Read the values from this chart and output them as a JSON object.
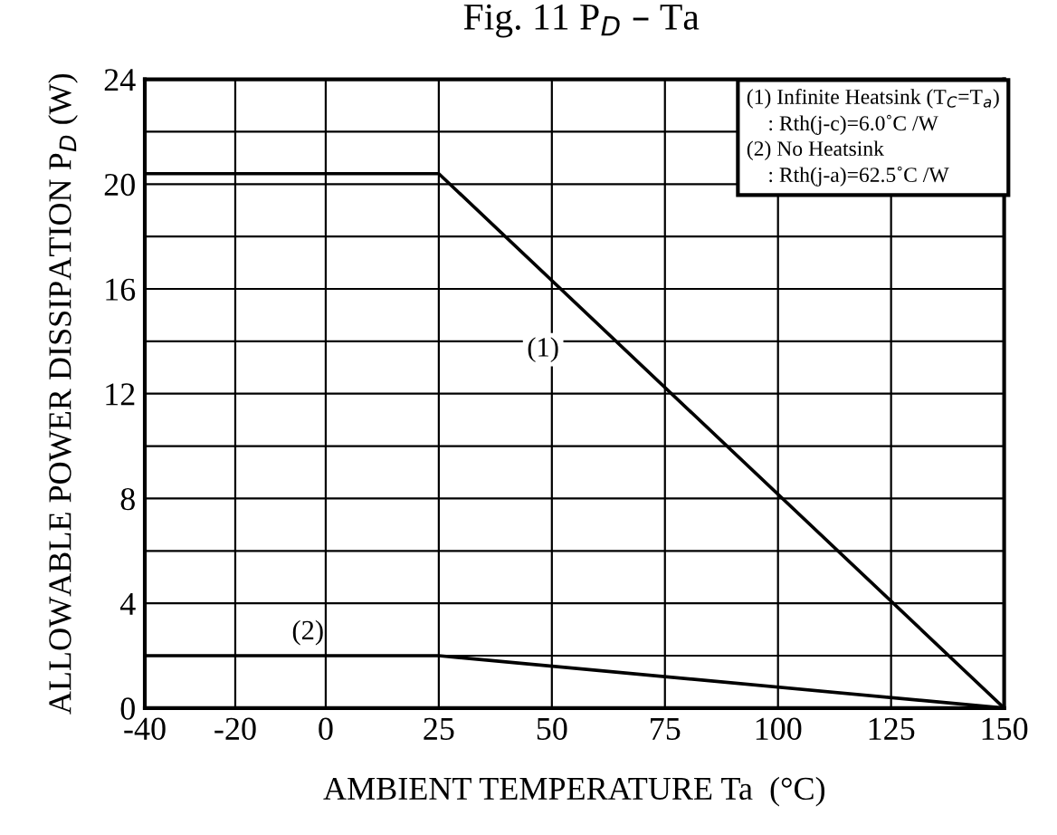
{
  "chart_data": {
    "type": "line",
    "title": "Fig. 11 P$_{D}$ – Ta",
    "xlabel": "AMBIENT TEMPERATURE Ta  (°C)",
    "ylabel": "ALLOWABLE POWER DISSIPATION P$_{D}$ (W)",
    "series": [
      {
        "name": "(1)",
        "color": "#000000",
        "x": [
          -40,
          25,
          150
        ],
        "values": [
          20.4,
          20.4,
          0
        ]
      },
      {
        "name": "(2)",
        "color": "#000000",
        "x": [
          -40,
          25,
          150
        ],
        "values": [
          2.0,
          2.0,
          0
        ]
      }
    ],
    "xlim": [
      -40,
      150
    ],
    "ylim": [
      0,
      24
    ],
    "xticks": [
      -40,
      -20,
      0,
      25,
      50,
      75,
      100,
      125,
      150
    ],
    "yticks": [
      0,
      {
        "value": 2,
        "label": null
      },
      4,
      {
        "value": 6,
        "label": null
      },
      8,
      {
        "value": 10,
        "label": null
      },
      12,
      {
        "value": 14,
        "label": null
      },
      16,
      {
        "value": 18,
        "label": null
      },
      20,
      {
        "value": 22,
        "label": null
      },
      24
    ],
    "grid": true,
    "legend": false,
    "marker": "none",
    "line_style": "solid",
    "annotations": [
      "(1) Infinite Heatsink (T$_{C}$=T$_{a}$)\n    : Rth(j-c)=6.0˚C /W\n(2) No Heatsink\n    : Rth(j-a)=62.5˚C /W"
    ]
  }
}
